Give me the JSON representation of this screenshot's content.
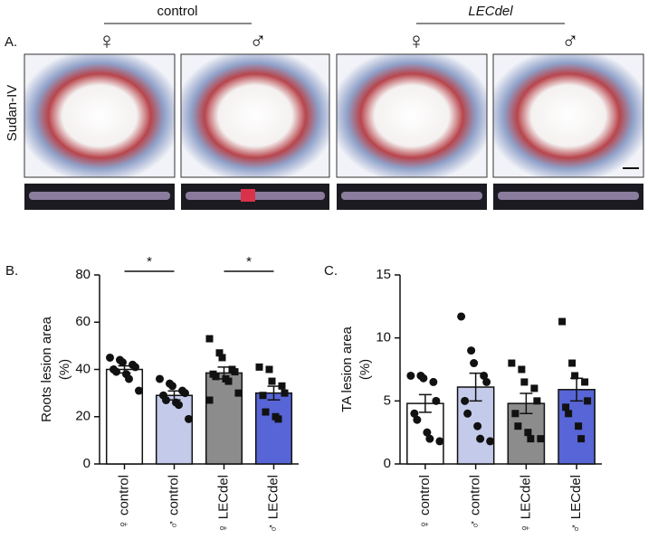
{
  "panel_a": {
    "label": "A.",
    "groups": [
      "control",
      "LECdel"
    ],
    "sexes": [
      "♀",
      "♂",
      "♀",
      "♂"
    ],
    "stain": "Sudan-IV"
  },
  "chart_data": [
    {
      "type": "bar",
      "label": "B.",
      "y_label": [
        "Roots lesion area",
        "(%)"
      ],
      "categories": [
        "♀ control",
        "♂ control",
        "♀ LECdel",
        "♂ LECdel"
      ],
      "values": [
        40,
        29,
        38.5,
        30
      ],
      "errors": [
        1.5,
        1.9,
        2.5,
        2.9
      ],
      "colors": [
        "#ffffff",
        "#c4cbea",
        "#8c8c8c",
        "#5865d6"
      ],
      "markers": [
        "circle",
        "circle",
        "square",
        "square"
      ],
      "points": [
        [
          45,
          44,
          43,
          42,
          41,
          40,
          39,
          38,
          36,
          31
        ],
        [
          36,
          34,
          33,
          31,
          30,
          29,
          27,
          26,
          25,
          19
        ],
        [
          53,
          47,
          45,
          40,
          39,
          38,
          37,
          36,
          35,
          30,
          27
        ],
        [
          41,
          40,
          35,
          33,
          30,
          29,
          22,
          20,
          19
        ]
      ],
      "annotations": [
        {
          "text": "*",
          "span": [
            0,
            1
          ]
        },
        {
          "text": "*",
          "span": [
            2,
            3
          ]
        }
      ],
      "ylim": [
        0,
        80
      ],
      "yticks": [
        0,
        20,
        40,
        60,
        80
      ]
    },
    {
      "type": "bar",
      "label": "C.",
      "y_label": [
        "TA lesion area",
        "(%)"
      ],
      "categories": [
        "♀ control",
        "♂ control",
        "♀ LECdel",
        "♂ LECdel"
      ],
      "values": [
        4.8,
        6.1,
        4.8,
        5.9
      ],
      "errors": [
        0.7,
        1.1,
        0.8,
        0.9
      ],
      "colors": [
        "#ffffff",
        "#c4cbea",
        "#8c8c8c",
        "#5865d6"
      ],
      "markers": [
        "circle",
        "circle",
        "square",
        "square"
      ],
      "points": [
        [
          7.0,
          7.0,
          6.8,
          6.5,
          5.0,
          4.0,
          3.5,
          2.5,
          2.0,
          1.8
        ],
        [
          11.7,
          9.0,
          8.0,
          7.0,
          6.5,
          5.0,
          4.0,
          3.0,
          2.0,
          1.8
        ],
        [
          8.0,
          7.5,
          6.5,
          6.0,
          5.0,
          4.0,
          3.0,
          2.5,
          2.0,
          2.0
        ],
        [
          11.3,
          8.0,
          7.0,
          6.5,
          5.0,
          4.5,
          4.0,
          3.0,
          2.0
        ]
      ],
      "ylim": [
        0,
        15
      ],
      "yticks": [
        0,
        5,
        10,
        15
      ]
    }
  ]
}
